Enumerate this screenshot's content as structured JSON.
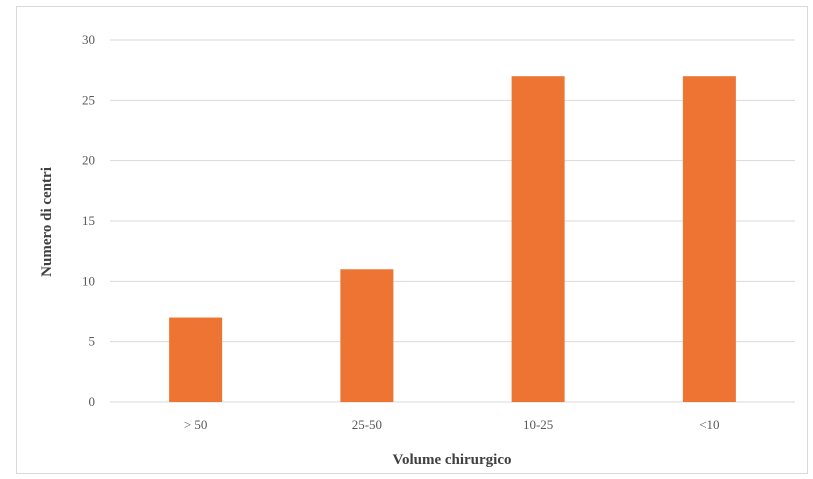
{
  "chart_data": {
    "type": "bar",
    "categories": [
      "> 50",
      "25-50",
      "10-25",
      "<10"
    ],
    "values": [
      7,
      11,
      27,
      27
    ],
    "title": "",
    "xlabel": "Volume chirurgico",
    "ylabel": "Numero di centri",
    "ylim": [
      0,
      30
    ],
    "yticks": [
      0,
      5,
      10,
      15,
      20,
      25,
      30
    ],
    "grid": true,
    "legend": "none",
    "bar_color": "#ED7432",
    "grid_color": "#d9d9d9"
  }
}
